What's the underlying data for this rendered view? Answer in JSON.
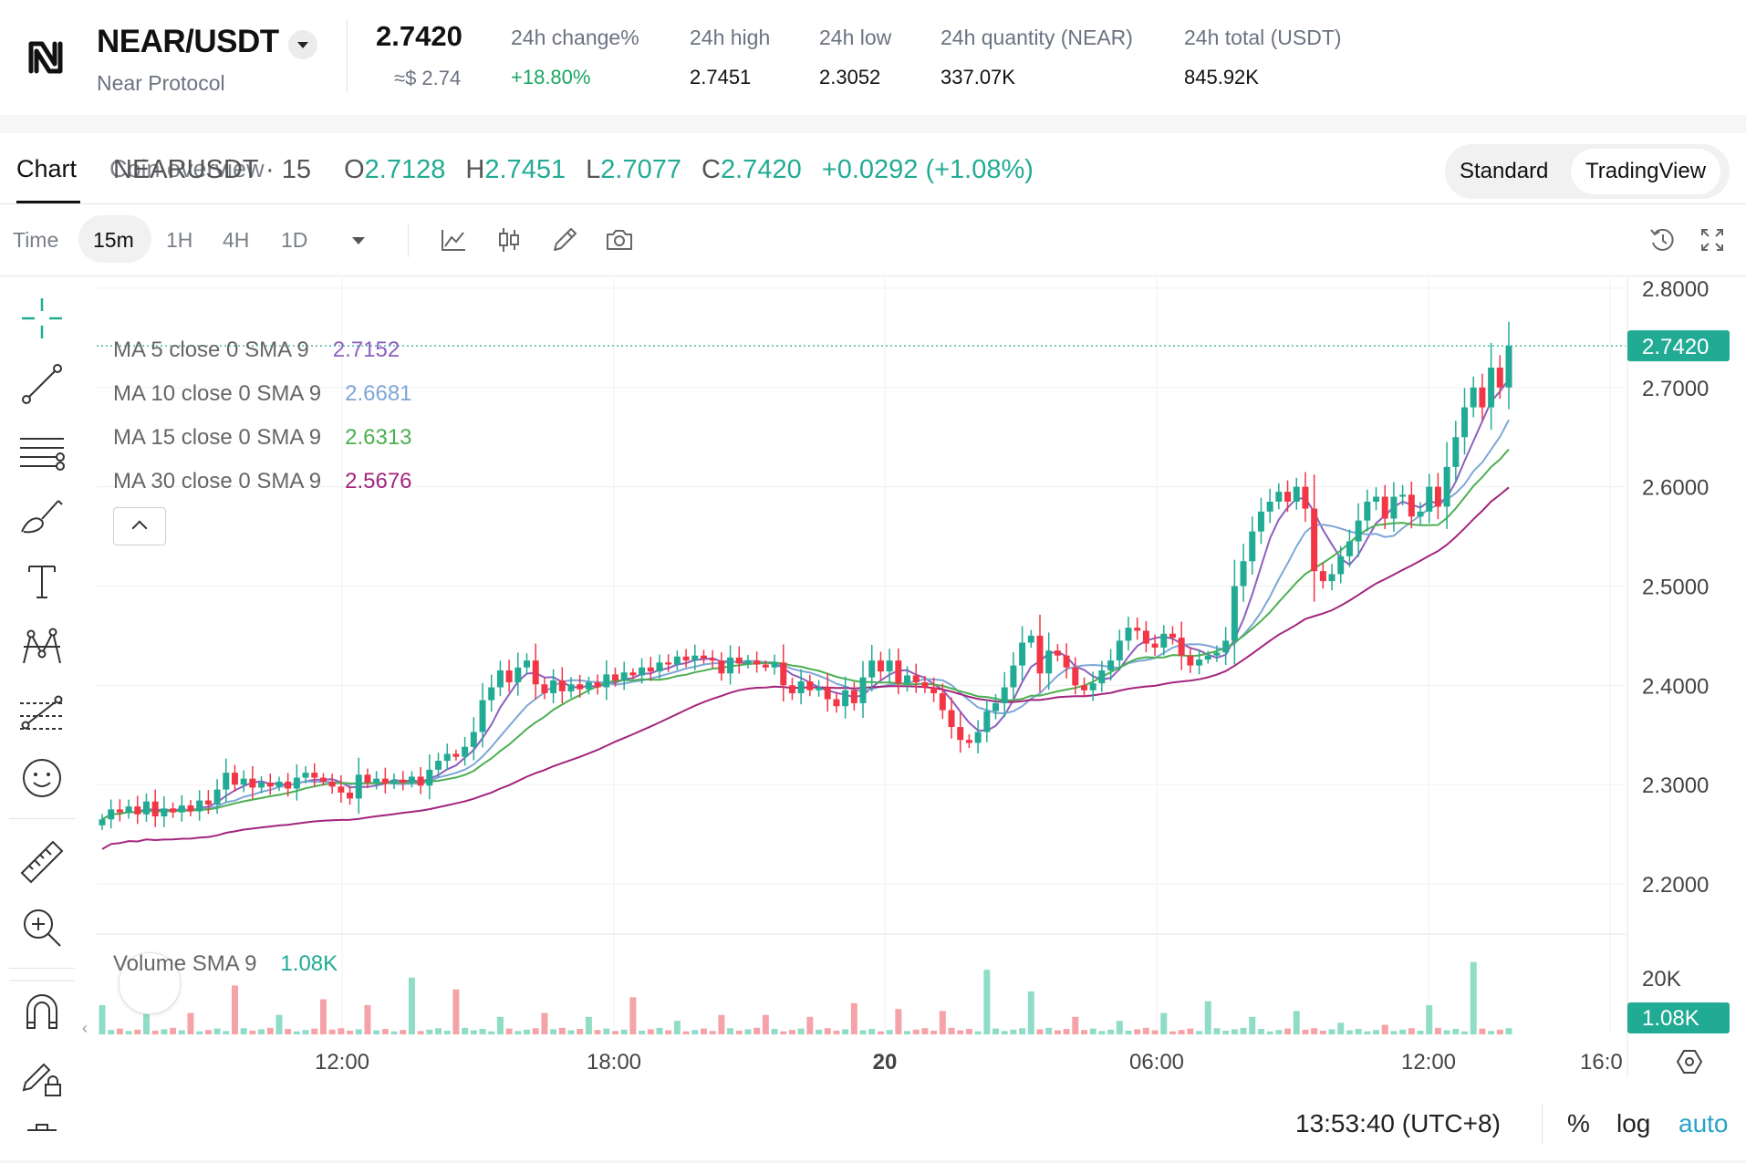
{
  "header": {
    "pair": "NEAR/USDT",
    "name": "Near Protocol",
    "price": "2.7420",
    "price_approx": "≈$ 2.74",
    "stats": [
      {
        "label": "24h change%",
        "value": "+18.80%",
        "positive": true
      },
      {
        "label": "24h high",
        "value": "2.7451"
      },
      {
        "label": "24h low",
        "value": "2.3052"
      },
      {
        "label": "24h quantity (NEAR)",
        "value": "337.07K"
      },
      {
        "label": "24h total (USDT)",
        "value": "845.92K"
      }
    ]
  },
  "tabs": [
    {
      "label": "Chart",
      "active": true
    },
    {
      "label": "Coin overview",
      "active": false
    }
  ],
  "view_toggle": [
    {
      "label": "Standard",
      "active": false
    },
    {
      "label": "TradingView",
      "active": true
    }
  ],
  "toolbar": {
    "time_label": "Time",
    "intervals": [
      {
        "label": "15m",
        "active": true
      },
      {
        "label": "1H",
        "active": false
      },
      {
        "label": "4H",
        "active": false
      },
      {
        "label": "1D",
        "active": false
      }
    ],
    "icons": [
      "indicators-icon",
      "chart-type-icon",
      "draw-icon",
      "snapshot-icon",
      "replay-icon",
      "fullscreen-icon"
    ]
  },
  "left_tools": [
    "crosshair-icon",
    "trend-line-icon",
    "horizontal-lines-icon",
    "brush-icon",
    "text-icon",
    "pattern-icon",
    "forecast-icon",
    "emoji-icon",
    "ruler-icon",
    "zoom-in-icon",
    "magnet-icon",
    "lock-drawings-icon",
    "trash-icon"
  ],
  "legend": {
    "symbol": "NEARUSDT · 15",
    "o_label": "O",
    "o": "2.7128",
    "h_label": "H",
    "h": "2.7451",
    "l_label": "L",
    "l": "2.7077",
    "c_label": "C",
    "c": "2.7420",
    "change": "+0.0292 (+1.08%)",
    "ma": [
      {
        "label": "MA 5 close 0 SMA 9",
        "value": "2.7152",
        "color": "#8e5fbf"
      },
      {
        "label": "MA 10 close 0 SMA 9",
        "value": "2.6681",
        "color": "#7ea6d6"
      },
      {
        "label": "MA 15 close 0 SMA 9",
        "value": "2.6313",
        "color": "#4caf50"
      },
      {
        "label": "MA 30 close 0 SMA 9",
        "value": "2.5676",
        "color": "#a3257e"
      }
    ],
    "volume_label": "Volume SMA 9",
    "volume_value": "1.08K"
  },
  "colors": {
    "up": "#22ab94",
    "down": "#f23645",
    "ma5": "#8e5fbf",
    "ma10": "#7ea6d6",
    "ma15": "#4caf50",
    "ma30": "#a3257e"
  },
  "price_axis": {
    "ticks": [
      "2.8000",
      "2.7000",
      "2.6000",
      "2.5000",
      "2.4000",
      "2.3000",
      "2.2000"
    ],
    "last_price": "2.7420",
    "volume_tick": "20K",
    "volume_last": "1.08K"
  },
  "time_axis": {
    "ticks": [
      {
        "label": "12:00",
        "bold": false
      },
      {
        "label": "18:00",
        "bold": false
      },
      {
        "label": "20",
        "bold": true
      },
      {
        "label": "06:00",
        "bold": false
      },
      {
        "label": "12:00",
        "bold": false
      },
      {
        "label": "16:0",
        "bold": false
      }
    ]
  },
  "footer": {
    "time": "13:53:40 (UTC+8)",
    "percent": "%",
    "log": "log",
    "auto": "auto"
  },
  "chart_data": {
    "type": "candlestick",
    "symbol": "NEARUSDT",
    "interval": "15",
    "y_range": [
      2.15,
      2.82
    ],
    "y_ticks": [
      2.2,
      2.3,
      2.4,
      2.5,
      2.6,
      2.7,
      2.8
    ],
    "x_ticks": [
      "12:00",
      "18:00",
      "20",
      "06:00",
      "12:00",
      "16:0"
    ],
    "closes": [
      2.265,
      2.275,
      2.272,
      2.278,
      2.27,
      2.283,
      2.268,
      2.276,
      2.272,
      2.279,
      2.273,
      2.284,
      2.28,
      2.295,
      2.312,
      2.3,
      2.306,
      2.297,
      2.302,
      2.298,
      2.303,
      2.296,
      2.307,
      2.312,
      2.307,
      2.303,
      2.298,
      2.292,
      2.286,
      2.31,
      2.302,
      2.306,
      2.301,
      2.305,
      2.302,
      2.308,
      2.299,
      2.315,
      2.324,
      2.331,
      2.328,
      2.338,
      2.353,
      2.385,
      2.398,
      2.415,
      2.403,
      2.418,
      2.425,
      2.401,
      2.392,
      2.405,
      2.394,
      2.401,
      2.396,
      2.403,
      2.398,
      2.411,
      2.405,
      2.413,
      2.41,
      2.418,
      2.414,
      2.423,
      2.421,
      2.429,
      2.425,
      2.43,
      2.427,
      2.425,
      2.412,
      2.428,
      2.422,
      2.425,
      2.421,
      2.418,
      2.423,
      2.4,
      2.392,
      2.404,
      2.395,
      2.398,
      2.386,
      2.379,
      2.395,
      2.382,
      2.408,
      2.425,
      2.414,
      2.425,
      2.402,
      2.41,
      2.403,
      2.398,
      2.392,
      2.375,
      2.358,
      2.345,
      2.342,
      2.353,
      2.374,
      2.382,
      2.398,
      2.42,
      2.443,
      2.45,
      2.412,
      2.435,
      2.43,
      2.418,
      2.4,
      2.395,
      2.402,
      2.415,
      2.425,
      2.445,
      2.458,
      2.455,
      2.442,
      2.438,
      2.452,
      2.448,
      2.43,
      2.42,
      2.426,
      2.43,
      2.433,
      2.445,
      2.5,
      2.525,
      2.555,
      2.575,
      2.585,
      2.595,
      2.585,
      2.6,
      2.578,
      2.515,
      2.505,
      2.512,
      2.53,
      2.545,
      2.566,
      2.585,
      2.59,
      2.568,
      2.59,
      2.592,
      2.57,
      2.575,
      2.6,
      2.58,
      2.62,
      2.65,
      2.68,
      2.7,
      2.68,
      2.72,
      2.7,
      2.742
    ],
    "ma": [
      {
        "name": "MA 5 close 0 SMA 9",
        "last": 2.7152
      },
      {
        "name": "MA 10 close 0 SMA 9",
        "last": 2.6681
      },
      {
        "name": "MA 15 close 0 SMA 9",
        "last": 2.6313
      },
      {
        "name": "MA 30 close 0 SMA 9",
        "last": 2.5676
      }
    ],
    "volume_peaks_k": [
      14,
      17,
      10,
      24,
      9,
      17,
      14,
      28,
      22,
      8,
      10,
      8,
      18,
      6,
      9,
      9,
      8,
      15,
      12,
      11,
      32,
      21,
      8,
      6,
      10,
      16,
      8,
      11,
      5,
      4,
      14,
      36
    ],
    "volume_max_k": 40,
    "last_volume": "1.08K"
  }
}
